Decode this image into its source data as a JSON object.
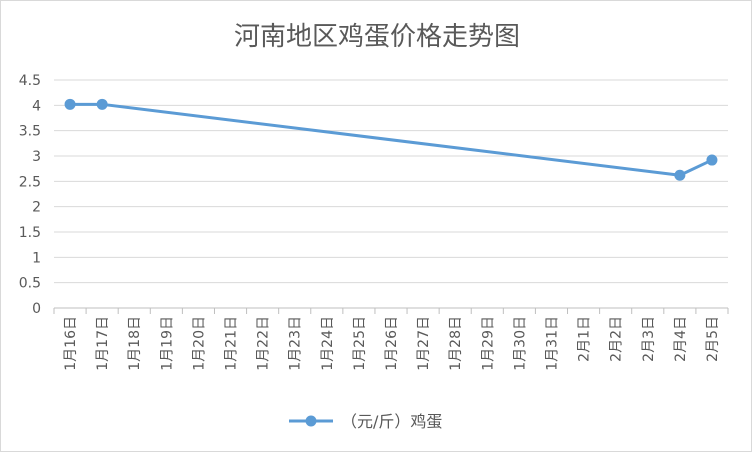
{
  "chart_data": {
    "type": "line",
    "title": "河南地区鸡蛋价格走势图",
    "categories": [
      "1月16日",
      "1月17日",
      "1月18日",
      "1月19日",
      "1月20日",
      "1月21日",
      "1月22日",
      "1月23日",
      "1月24日",
      "1月25日",
      "1月26日",
      "1月27日",
      "1月28日",
      "1月29日",
      "1月30日",
      "1月31日",
      "2月1日",
      "2月2日",
      "2月3日",
      "2月4日",
      "2月5日"
    ],
    "series": [
      {
        "name": "（元/斤）鸡蛋",
        "points": [
          {
            "x": "1月16日",
            "y": 4.02
          },
          {
            "x": "1月17日",
            "y": 4.02
          },
          {
            "x": "2月4日",
            "y": 2.62
          },
          {
            "x": "2月5日",
            "y": 2.92
          }
        ],
        "color": "#5b9bd5"
      }
    ],
    "yticks": [
      "0",
      "0.5",
      "1",
      "1.5",
      "2",
      "2.5",
      "3",
      "3.5",
      "4",
      "4.5"
    ],
    "ylim": [
      0,
      4.5
    ],
    "grid": true,
    "legend": "bottom"
  }
}
